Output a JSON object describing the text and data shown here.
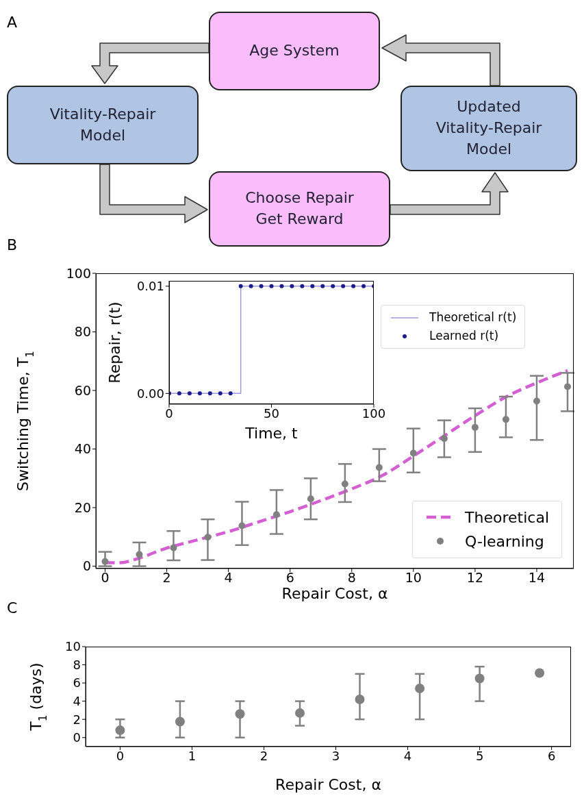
{
  "chart_data": [
    {
      "type": "other",
      "title": "A",
      "annotations": [
        "Age System",
        "Vitality-Repair Model",
        "Choose Repair Get Reward",
        "Updated Vitality-Repair Model"
      ]
    },
    {
      "type": "line",
      "title": "B",
      "xlabel": "Repair Cost, α",
      "ylabel": "Switching Time, T$_{1}$",
      "xlim": [
        -0.3,
        15.2
      ],
      "xticks": [
        0,
        2,
        4,
        6,
        8,
        10,
        12,
        14
      ],
      "ylim": [
        -0.8,
        100
      ],
      "yticks": [
        0,
        20,
        40,
        60,
        80,
        100
      ],
      "legend": "bottom right",
      "series": [
        {
          "name": "Theoretical",
          "type": "line",
          "line_style": "dashed",
          "marker": "none",
          "color": "#d35fd3",
          "x": [
            0,
            0.5,
            1,
            2,
            3,
            4,
            5,
            6,
            7,
            8,
            9,
            10,
            11,
            12,
            13,
            14,
            15
          ],
          "values": [
            1.2,
            1.2,
            2.4,
            6.2,
            9,
            11.8,
            15.2,
            18.6,
            22.4,
            26.4,
            31,
            37.6,
            44.5,
            51.4,
            57.8,
            62.6,
            66.8
          ]
        },
        {
          "name": "Q-learning",
          "type": "scatter",
          "marker": "circle",
          "color": "#808080",
          "x": [
            0,
            1.11,
            2.22,
            3.33,
            4.44,
            5.56,
            6.67,
            7.78,
            8.89,
            10,
            11,
            12,
            13,
            14,
            15
          ],
          "values": [
            1.6,
            4,
            6.3,
            9.9,
            13.8,
            17.6,
            23,
            28.1,
            33.7,
            38.6,
            43.6,
            47.4,
            50.1,
            56.4,
            61.3
          ],
          "errors": [
            [
              0,
              4.9
            ],
            [
              0,
              8.1
            ],
            [
              2,
              12
            ],
            [
              2.1,
              16
            ],
            [
              7.2,
              22
            ],
            [
              11,
              26
            ],
            [
              16,
              30
            ],
            [
              21.9,
              34.9
            ],
            [
              29,
              40
            ],
            [
              32,
              47
            ],
            [
              37.2,
              49.8
            ],
            [
              39,
              53.9
            ],
            [
              44,
              57.9
            ],
            [
              43.1,
              65
            ],
            [
              52.9,
              66
            ]
          ]
        }
      ]
    },
    {
      "type": "step",
      "xlabel": "Time, t",
      "ylabel": "Repair, r(t)",
      "xlim": [
        0,
        100
      ],
      "xticks": [
        0,
        50,
        100
      ],
      "ylim": [
        -0.001,
        0.0105
      ],
      "yticks": [
        {
          "value": 0,
          "label": "0.00"
        },
        0.01
      ],
      "legend": "right",
      "series": [
        {
          "name": "Theoretical r(t)",
          "type": "step",
          "color": "#9a9ae0",
          "x": [
            0,
            35,
            100
          ],
          "values": [
            0,
            0.01,
            0.01
          ]
        },
        {
          "name": "Learned r(t)",
          "type": "scatter",
          "marker": "circle",
          "color": "#1c1c8c",
          "x": [
            0,
            5,
            10,
            15,
            20,
            25,
            30,
            35,
            40,
            45,
            50,
            55,
            60,
            65,
            70,
            75,
            80,
            85,
            90,
            95,
            100
          ],
          "values": [
            0,
            0,
            0,
            0,
            0,
            0,
            0,
            0.01,
            0.01,
            0.01,
            0.01,
            0.01,
            0.01,
            0.01,
            0.01,
            0.01,
            0.01,
            0.01,
            0.01,
            0.01,
            0.01
          ]
        }
      ]
    },
    {
      "type": "scatter",
      "title": "C",
      "xlabel": "Repair Cost, α",
      "ylabel": "T$_{1}$ (days)",
      "xlim": [
        -0.48,
        6.27
      ],
      "xticks": [
        0,
        1,
        2,
        3,
        4,
        5,
        6
      ],
      "ylim": [
        -1,
        10
      ],
      "yticks": [
        0,
        2,
        4,
        6,
        8,
        10
      ],
      "marker": "circle",
      "series": [
        {
          "color": "#808080",
          "x": [
            0,
            0.833,
            1.667,
            2.5,
            3.333,
            4.167,
            5,
            5.833
          ],
          "values": [
            0.8,
            1.75,
            2.6,
            2.7,
            4.2,
            5.4,
            6.5,
            7.1
          ],
          "errors": [
            [
              0,
              2
            ],
            [
              0,
              4
            ],
            [
              0,
              4
            ],
            [
              1.3,
              4
            ],
            [
              2,
              7
            ],
            [
              2,
              7
            ],
            [
              4,
              7.8
            ],
            null
          ]
        }
      ]
    }
  ]
}
